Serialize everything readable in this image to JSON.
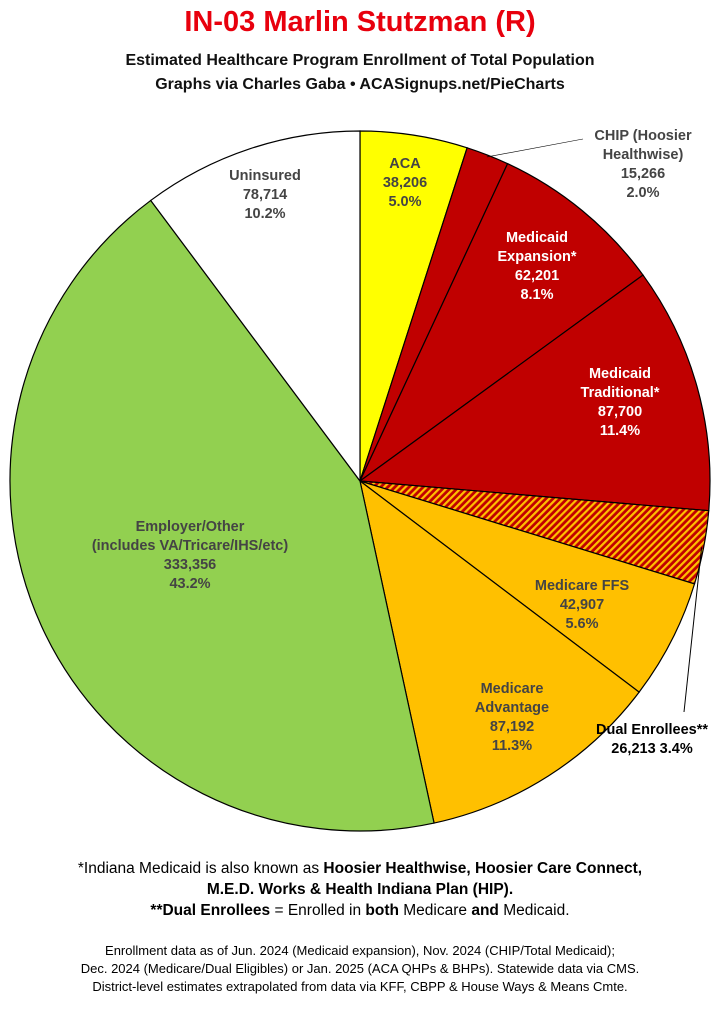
{
  "chart_data": {
    "type": "pie",
    "title": "IN-03 Marlin Stutzman (R)",
    "subtitle_lines": [
      "Estimated Healthcare Program Enrollment of Total Population",
      "Graphs via Charles Gaba  •  ACASignups.net/PieCharts"
    ],
    "start": "top, clockwise",
    "slices": [
      {
        "id": "aca",
        "label_lines": [
          "ACA"
        ],
        "value_text": "38,206",
        "percent_text": "5.0%",
        "value": 38206,
        "color": "#ffff00",
        "text_color": "#444444"
      },
      {
        "id": "chip",
        "label_lines": [
          "CHIP (Hoosier",
          "Healthwise)"
        ],
        "value_text": "15,266",
        "percent_text": "2.0%",
        "value": 15266,
        "color": "#c00000",
        "text_color": "#444444"
      },
      {
        "id": "medicaid-expansion",
        "label_lines": [
          "Medicaid",
          "Expansion*"
        ],
        "value_text": "62,201",
        "percent_text": "8.1%",
        "value": 62201,
        "color": "#c00000",
        "text_color": "#ffffff"
      },
      {
        "id": "medicaid-traditional",
        "label_lines": [
          "Medicaid",
          "Traditional*"
        ],
        "value_text": "87,700",
        "percent_text": "11.4%",
        "value": 87700,
        "color": "#c00000",
        "text_color": "#ffffff"
      },
      {
        "id": "dual-enrollees",
        "label_lines": [
          "Dual Enrollees**"
        ],
        "value_text": "26,213",
        "percent_text": "3.4%",
        "value": 26213,
        "color": "#e86a00",
        "text_color": "#000000",
        "pattern": "hatch"
      },
      {
        "id": "medicare-ffs",
        "label_lines": [
          "Medicare FFS"
        ],
        "value_text": "42,907",
        "percent_text": "5.6%",
        "value": 42907,
        "color": "#ffc000",
        "text_color": "#444444"
      },
      {
        "id": "medicare-advantage",
        "label_lines": [
          "Medicare",
          "Advantage"
        ],
        "value_text": "87,192",
        "percent_text": "11.3%",
        "value": 87192,
        "color": "#ffc000",
        "text_color": "#444444"
      },
      {
        "id": "employer-other",
        "label_lines": [
          "Employer/Other",
          "(includes VA/Tricare/IHS/etc)"
        ],
        "value_text": "333,356",
        "percent_text": "43.2%",
        "value": 333356,
        "color": "#92d050",
        "text_color": "#444444"
      },
      {
        "id": "uninsured",
        "label_lines": [
          "Uninsured"
        ],
        "value_text": "78,714",
        "percent_text": "10.2%",
        "value": 78714,
        "color": "#ffffff",
        "text_color": "#444444"
      }
    ]
  },
  "notes": {
    "line1_prefix": "*Indiana Medicaid is also known as ",
    "line1_bold": "Hoosier Healthwise, Hoosier Care Connect,",
    "line2_bold": "M.E.D. Works & Health Indiana Plan (HIP).",
    "line3_bold1": "**Dual Enrollees",
    "line3_mid1": " = Enrolled in ",
    "line3_bold2": "both",
    "line3_mid2": " Medicare ",
    "line3_bold3": "and",
    "line3_end": " Medicaid."
  },
  "footer": {
    "line1": "Enrollment data as of Jun. 2024 (Medicaid expansion), Nov. 2024 (CHIP/Total Medicaid);",
    "line2": "Dec. 2024 (Medicare/Dual Eligibles) or Jan. 2025 (ACA QHPs & BHPs). Statewide data via CMS.",
    "line3": "District-level estimates extrapolated from data via KFF, CBPP & House Ways & Means Cmte."
  }
}
